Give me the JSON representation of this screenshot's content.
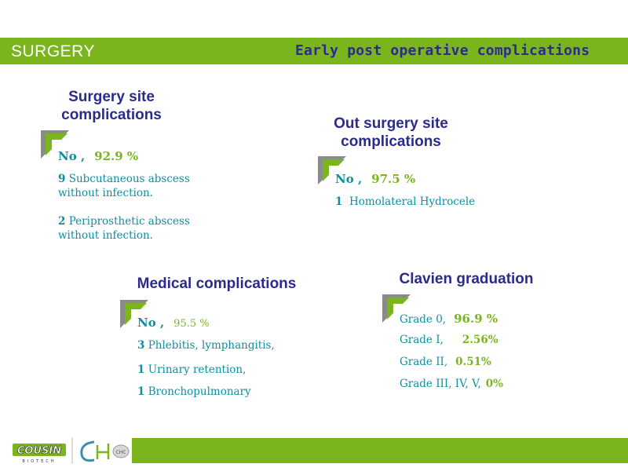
{
  "header": {
    "section_label": "SURGERY",
    "title": "Early post operative complications"
  },
  "blocks": {
    "site": {
      "title_line1": "Surgery site",
      "title_line2": "complications",
      "no_label": "No ,",
      "no_value": "92.9 %",
      "items": [
        {
          "count": "9",
          "text": "Subcutaneous abscess",
          "text2": "without infection."
        },
        {
          "count": "2",
          "text": "Periprosthetic abscess",
          "text2": "without infection."
        }
      ]
    },
    "out_site": {
      "title_line1": "Out surgery site",
      "title_line2": "complications",
      "no_label": "No ,",
      "no_value": "97.5 %",
      "items": [
        {
          "count": "1",
          "text": "Homolateral Hydrocele"
        }
      ]
    },
    "medical": {
      "title": "Medical complications",
      "no_label": "No ,",
      "no_value": "95.5 %",
      "items": [
        {
          "count": "3",
          "text": "Phlebitis, lymphangitis,"
        },
        {
          "count": "1",
          "text": "Urinary retention,"
        },
        {
          "count": "1",
          "text": "Bronchopulmonary"
        }
      ]
    },
    "clavien": {
      "title": "Clavien graduation",
      "grades": [
        {
          "label": "Grade 0,",
          "value": "96.9 %"
        },
        {
          "label": "Grade I,",
          "value": "2.56%"
        },
        {
          "label": "Grade II,",
          "value": "0.51%"
        },
        {
          "label": "Grade III, IV, V,",
          "value": "0%"
        }
      ]
    }
  },
  "footer": {
    "logo_text": "COUSIN",
    "logo_subtext": "BIOTECH",
    "logo2_text": "CHC"
  },
  "colors": {
    "accent_green": "#7ab51d",
    "title_navy": "#2b2b8c",
    "text_teal": "#0e8fa0"
  }
}
